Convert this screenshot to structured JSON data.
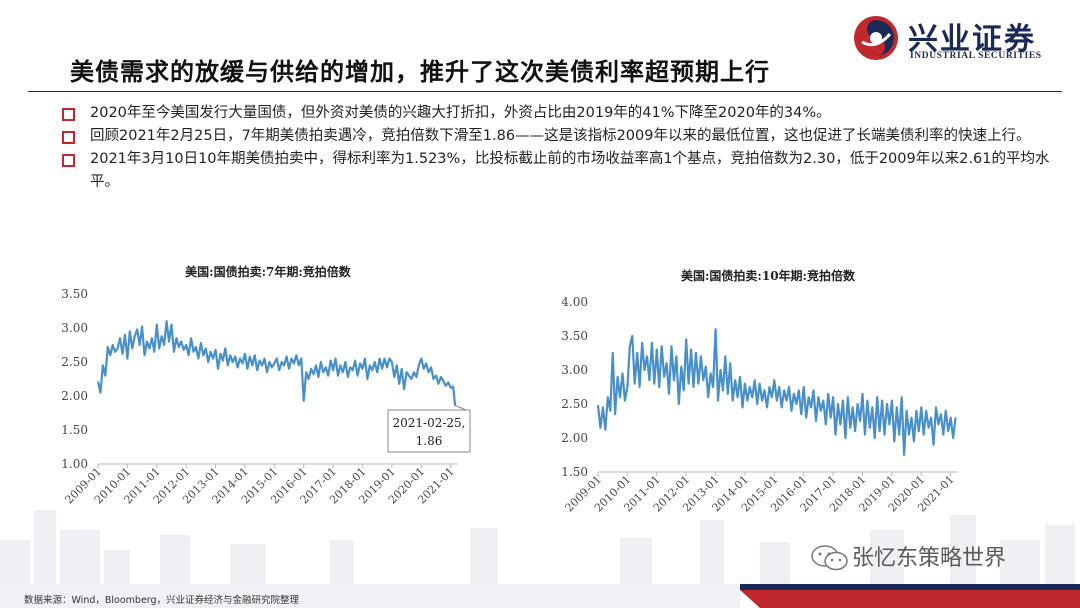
{
  "logo": {
    "name_cn": "兴业证券",
    "name_en": "INDUSTRIAL SECURITIES"
  },
  "slide_title": "美债需求的放缓与供给的增加，推升了这次美债利率超预期上行",
  "bullets": [
    "2020年至今美国发行大量国债，但外资对美债的兴趣大打折扣，外资占比由2019年的41%下降至2020年的34%。",
    "回顾2021年2月25日，7年期美债拍卖遇冷，竞拍倍数下滑至1.86——这是该指标2009年以来的最低位置，这也促进了长端美债利率的快速上行。",
    "2021年3月10日10年期美债拍卖中，得标利率为1.523%，比投标截止前的市场收益率高1个基点，竞拍倍数为2.30，低于2009年以来2.61的平均水平。"
  ],
  "footer": {
    "source": "数据来源：Wind，Bloomberg，兴业证券经济与金融研究院整理",
    "watermark": "张忆东策略世界"
  },
  "colors": {
    "line": "#4a90c8",
    "accent_red": "#c0282d",
    "navy": "#1b2a55"
  },
  "chart_data": [
    {
      "type": "line",
      "title": "美国:国债拍卖:7年期:竞拍倍数",
      "ylim": [
        1.0,
        3.5
      ],
      "yticks": [
        "3.50",
        "3.00",
        "2.50",
        "2.00",
        "1.50",
        "1.00"
      ],
      "xticks": [
        "2009-01",
        "2010-01",
        "2011-01",
        "2012-01",
        "2013-01",
        "2014-01",
        "2015-01",
        "2016-01",
        "2017-01",
        "2018-01",
        "2019-01",
        "2020-01",
        "2021-01"
      ],
      "xlim": [
        2009.0,
        2021.25
      ],
      "annotation": {
        "label": "2021-02-25,",
        "value_label": "1.86"
      },
      "series": [
        {
          "x": [
            2009.0,
            2009.083,
            2009.167,
            2009.25,
            2009.333,
            2009.417,
            2009.5,
            2009.583,
            2009.667,
            2009.75,
            2009.833,
            2009.917,
            2010.0,
            2010.083,
            2010.167,
            2010.25,
            2010.333,
            2010.417,
            2010.5,
            2010.583,
            2010.667,
            2010.75,
            2010.833,
            2010.917,
            2011.0,
            2011.083,
            2011.167,
            2011.25,
            2011.333,
            2011.417,
            2011.5,
            2011.583,
            2011.667,
            2011.75,
            2011.833,
            2011.917,
            2012.0,
            2012.083,
            2012.167,
            2012.25,
            2012.333,
            2012.417,
            2012.5,
            2012.583,
            2012.667,
            2012.75,
            2012.833,
            2012.917,
            2013.0,
            2013.083,
            2013.167,
            2013.25,
            2013.333,
            2013.417,
            2013.5,
            2013.583,
            2013.667,
            2013.75,
            2013.833,
            2013.917,
            2014.0,
            2014.083,
            2014.167,
            2014.25,
            2014.333,
            2014.417,
            2014.5,
            2014.583,
            2014.667,
            2014.75,
            2014.833,
            2014.917,
            2015.0,
            2015.083,
            2015.167,
            2015.25,
            2015.333,
            2015.417,
            2015.5,
            2015.583,
            2015.667,
            2015.75,
            2015.833,
            2015.917,
            2016.0,
            2016.083,
            2016.167,
            2016.25,
            2016.333,
            2016.417,
            2016.5,
            2016.583,
            2016.667,
            2016.75,
            2016.833,
            2016.917,
            2017.0,
            2017.083,
            2017.167,
            2017.25,
            2017.333,
            2017.417,
            2017.5,
            2017.583,
            2017.667,
            2017.75,
            2017.833,
            2017.917,
            2018.0,
            2018.083,
            2018.167,
            2018.25,
            2018.333,
            2018.417,
            2018.5,
            2018.583,
            2018.667,
            2018.75,
            2018.833,
            2018.917,
            2019.0,
            2019.083,
            2019.167,
            2019.25,
            2019.333,
            2019.417,
            2019.5,
            2019.583,
            2019.667,
            2019.75,
            2019.833,
            2019.917,
            2020.0,
            2020.083,
            2020.167,
            2020.25,
            2020.333,
            2020.417,
            2020.5,
            2020.583,
            2020.667,
            2020.75,
            2020.833,
            2020.917,
            2021.0,
            2021.083,
            2021.15
          ],
          "y": [
            2.21,
            2.05,
            2.45,
            2.3,
            2.72,
            2.6,
            2.75,
            2.65,
            2.7,
            2.85,
            2.62,
            2.9,
            2.55,
            2.95,
            2.7,
            2.88,
            2.98,
            2.75,
            3.02,
            2.6,
            2.8,
            2.7,
            2.85,
            2.65,
            3.05,
            2.7,
            2.88,
            2.75,
            3.1,
            2.8,
            3.05,
            2.65,
            2.85,
            2.72,
            2.8,
            2.68,
            2.75,
            2.6,
            2.85,
            2.65,
            2.72,
            2.55,
            2.78,
            2.6,
            2.7,
            2.5,
            2.65,
            2.55,
            2.68,
            2.4,
            2.62,
            2.52,
            2.7,
            2.45,
            2.6,
            2.5,
            2.58,
            2.42,
            2.55,
            2.48,
            2.62,
            2.4,
            2.58,
            2.45,
            2.6,
            2.38,
            2.52,
            2.45,
            2.55,
            2.35,
            2.5,
            2.42,
            2.48,
            2.55,
            2.38,
            2.5,
            2.45,
            2.58,
            2.4,
            2.55,
            2.48,
            2.6,
            2.45,
            2.55,
            1.93,
            2.35,
            2.25,
            2.4,
            2.32,
            2.45,
            2.28,
            2.5,
            2.35,
            2.42,
            2.3,
            2.52,
            2.38,
            2.55,
            2.3,
            2.45,
            2.35,
            2.5,
            2.28,
            2.42,
            2.38,
            2.52,
            2.3,
            2.48,
            2.4,
            2.55,
            2.25,
            2.45,
            2.38,
            2.5,
            2.35,
            2.55,
            2.4,
            2.55,
            2.42,
            2.55,
            2.5,
            2.28,
            2.45,
            2.18,
            2.4,
            2.1,
            2.35,
            2.3,
            2.25,
            2.35,
            2.28,
            2.45,
            2.55,
            2.4,
            2.48,
            2.35,
            2.42,
            2.25,
            2.3,
            2.18,
            2.28,
            2.22,
            2.15,
            2.2,
            2.12,
            2.14,
            1.86
          ]
        }
      ]
    },
    {
      "type": "line",
      "title": "美国:国债拍卖:10年期:竞拍倍数",
      "ylim": [
        1.5,
        4.0
      ],
      "yticks": [
        "4.00",
        "3.50",
        "3.00",
        "2.50",
        "2.00",
        "1.50"
      ],
      "xticks": [
        "2009-01",
        "2010-01",
        "2011-01",
        "2012-01",
        "2013-01",
        "2014-01",
        "2015-01",
        "2016-01",
        "2017-01",
        "2018-01",
        "2019-01",
        "2020-01",
        "2021-01"
      ],
      "xlim": [
        2009.0,
        2021.25
      ],
      "series": [
        {
          "x": [
            2009.0,
            2009.083,
            2009.167,
            2009.25,
            2009.333,
            2009.417,
            2009.5,
            2009.583,
            2009.667,
            2009.75,
            2009.833,
            2009.917,
            2010.0,
            2010.083,
            2010.167,
            2010.25,
            2010.333,
            2010.417,
            2010.5,
            2010.583,
            2010.667,
            2010.75,
            2010.833,
            2010.917,
            2011.0,
            2011.083,
            2011.167,
            2011.25,
            2011.333,
            2011.417,
            2011.5,
            2011.583,
            2011.667,
            2011.75,
            2011.833,
            2011.917,
            2012.0,
            2012.083,
            2012.167,
            2012.25,
            2012.333,
            2012.417,
            2012.5,
            2012.583,
            2012.667,
            2012.75,
            2012.833,
            2012.917,
            2013.0,
            2013.083,
            2013.167,
            2013.25,
            2013.333,
            2013.417,
            2013.5,
            2013.583,
            2013.667,
            2013.75,
            2013.833,
            2013.917,
            2014.0,
            2014.083,
            2014.167,
            2014.25,
            2014.333,
            2014.417,
            2014.5,
            2014.583,
            2014.667,
            2014.75,
            2014.833,
            2014.917,
            2015.0,
            2015.083,
            2015.167,
            2015.25,
            2015.333,
            2015.417,
            2015.5,
            2015.583,
            2015.667,
            2015.75,
            2015.833,
            2015.917,
            2016.0,
            2016.083,
            2016.167,
            2016.25,
            2016.333,
            2016.417,
            2016.5,
            2016.583,
            2016.667,
            2016.75,
            2016.833,
            2016.917,
            2017.0,
            2017.083,
            2017.167,
            2017.25,
            2017.333,
            2017.417,
            2017.5,
            2017.583,
            2017.667,
            2017.75,
            2017.833,
            2017.917,
            2018.0,
            2018.083,
            2018.167,
            2018.25,
            2018.333,
            2018.417,
            2018.5,
            2018.583,
            2018.667,
            2018.75,
            2018.833,
            2018.917,
            2019.0,
            2019.083,
            2019.167,
            2019.25,
            2019.333,
            2019.417,
            2019.5,
            2019.583,
            2019.667,
            2019.75,
            2019.833,
            2019.917,
            2020.0,
            2020.083,
            2020.167,
            2020.25,
            2020.333,
            2020.417,
            2020.5,
            2020.583,
            2020.667,
            2020.75,
            2020.833,
            2020.917,
            2021.0,
            2021.083,
            2021.17
          ],
          "y": [
            2.48,
            2.15,
            2.45,
            2.12,
            2.6,
            2.4,
            3.25,
            2.35,
            2.9,
            2.6,
            2.95,
            2.55,
            2.75,
            3.35,
            3.5,
            2.8,
            3.25,
            2.75,
            3.4,
            3.0,
            3.2,
            2.85,
            3.4,
            2.8,
            3.3,
            2.75,
            3.35,
            2.9,
            3.1,
            2.65,
            3.35,
            2.85,
            3.2,
            2.5,
            3.05,
            2.7,
            3.45,
            2.8,
            3.3,
            2.75,
            3.25,
            2.8,
            3.2,
            2.85,
            3.05,
            2.6,
            2.95,
            2.75,
            3.6,
            2.55,
            3.0,
            2.7,
            3.2,
            2.65,
            3.1,
            2.55,
            2.85,
            2.6,
            2.9,
            2.45,
            2.8,
            2.55,
            2.75,
            2.6,
            2.85,
            2.5,
            2.8,
            2.55,
            2.7,
            2.45,
            2.75,
            2.6,
            2.85,
            2.55,
            2.75,
            2.45,
            2.7,
            2.55,
            2.75,
            2.4,
            2.65,
            2.5,
            2.7,
            2.35,
            2.75,
            2.3,
            2.6,
            2.45,
            2.7,
            2.25,
            2.6,
            2.4,
            2.55,
            2.2,
            2.65,
            2.3,
            2.6,
            2.05,
            2.5,
            2.2,
            2.55,
            2.0,
            2.6,
            2.15,
            2.45,
            2.1,
            2.5,
            2.25,
            2.65,
            2.05,
            2.55,
            2.15,
            2.45,
            2.0,
            2.6,
            2.1,
            2.55,
            2.05,
            2.5,
            2.2,
            2.55,
            1.95,
            2.45,
            2.05,
            2.6,
            1.75,
            2.4,
            2.05,
            2.3,
            1.95,
            2.4,
            2.1,
            2.45,
            2.05,
            2.4,
            2.15,
            2.3,
            1.9,
            2.45,
            2.2,
            2.35,
            2.05,
            2.4,
            2.1,
            2.3,
            2.0,
            2.3
          ]
        }
      ]
    }
  ]
}
